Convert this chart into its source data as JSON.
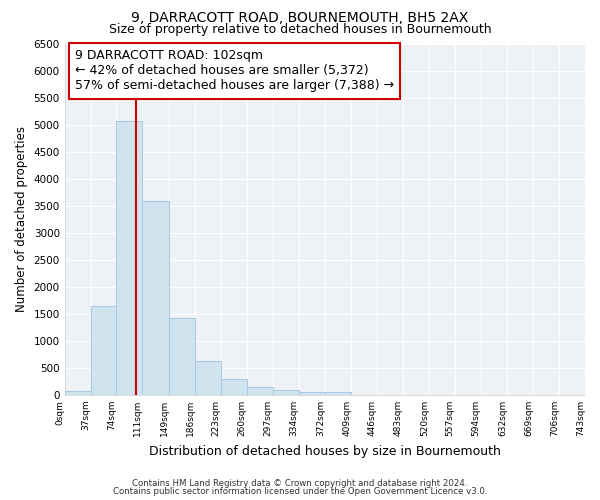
{
  "title": "9, DARRACOTT ROAD, BOURNEMOUTH, BH5 2AX",
  "subtitle": "Size of property relative to detached houses in Bournemouth",
  "xlabel": "Distribution of detached houses by size in Bournemouth",
  "ylabel": "Number of detached properties",
  "bin_edges": [
    0,
    37,
    74,
    111,
    149,
    186,
    223,
    260,
    297,
    334,
    372,
    409,
    446,
    483,
    520,
    557,
    594,
    632,
    669,
    706,
    743
  ],
  "bar_heights": [
    80,
    1650,
    5080,
    3600,
    1420,
    620,
    300,
    150,
    100,
    50,
    50,
    0,
    0,
    0,
    0,
    0,
    0,
    0,
    0,
    0
  ],
  "bar_color": "#d0e4f0",
  "bar_edgecolor": "#a8c8e0",
  "vline_x": 102,
  "vline_color": "#cc0000",
  "annotation_line1": "9 DARRACOTT ROAD: 102sqm",
  "annotation_line2": "← 42% of detached houses are smaller (5,372)",
  "annotation_line3": "57% of semi-detached houses are larger (7,388) →",
  "annotation_box_color": "#cc0000",
  "ylim": [
    0,
    6500
  ],
  "yticks": [
    0,
    500,
    1000,
    1500,
    2000,
    2500,
    3000,
    3500,
    4000,
    4500,
    5000,
    5500,
    6000,
    6500
  ],
  "footnote1": "Contains HM Land Registry data © Crown copyright and database right 2024.",
  "footnote2": "Contains public sector information licensed under the Open Government Licence v3.0.",
  "background_color": "#ffffff",
  "plot_background": "#eef2f7",
  "grid_color": "#ffffff",
  "title_fontsize": 10,
  "subtitle_fontsize": 9,
  "annotation_fontsize": 9
}
